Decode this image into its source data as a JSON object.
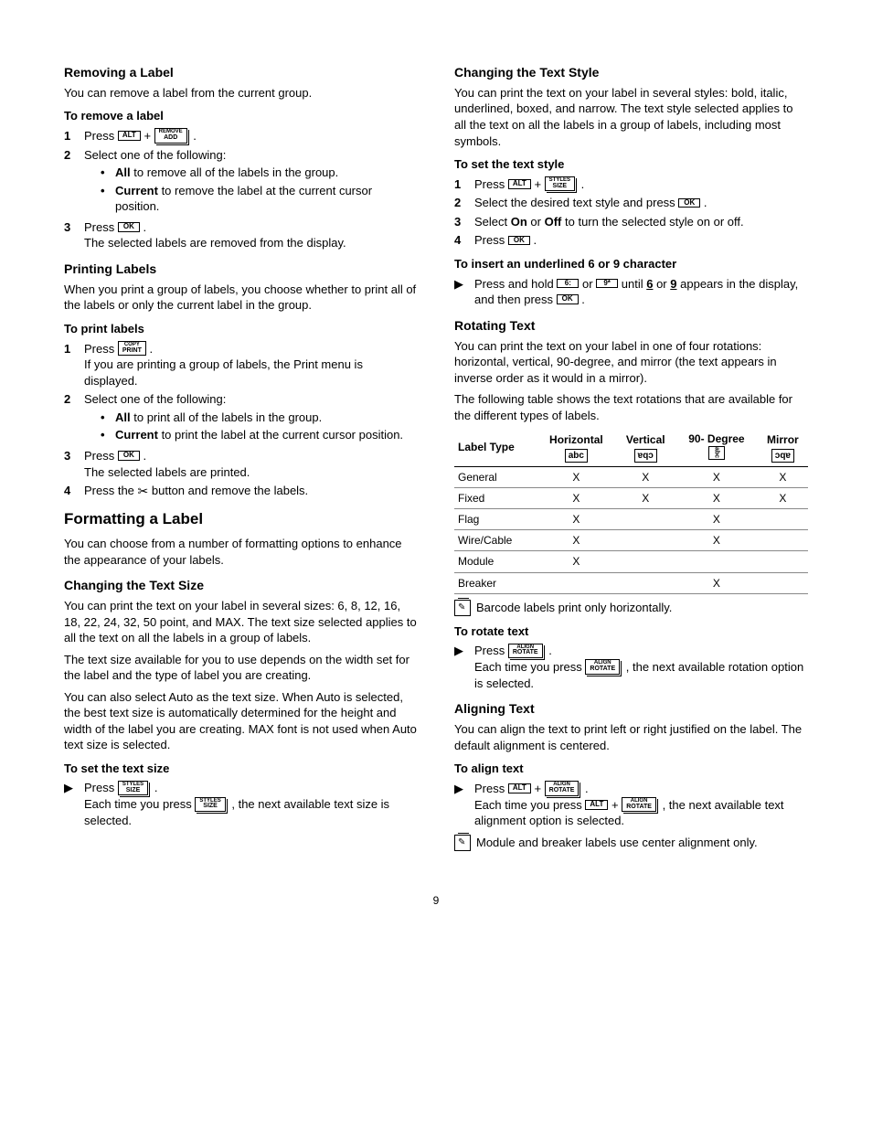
{
  "left": {
    "removing_h": "Removing a Label",
    "removing_p": "You can remove a label from the current group.",
    "remove_sub": "To remove a label",
    "step1_press": "Press ",
    "plus": " + ",
    "period": ".",
    "step2": "Select one of the following:",
    "all_b": "All",
    "all_t": " to remove all of the labels in the group.",
    "cur_b": "Current",
    "cur_t": " to remove the label at the current cursor position.",
    "step3_press": "Press ",
    "step3_after": "The selected labels are removed from the display.",
    "printing_h": "Printing Labels",
    "printing_p": "When you print a group of labels, you choose whether to print all of the labels or only the current label in the group.",
    "print_sub": "To print labels",
    "p_step1_press": "Press ",
    "p_step1_after": "If you are printing a group of labels, the Print menu is displayed.",
    "p_step2": "Select one of the following:",
    "p_all_t": " to print all of the labels in the group.",
    "p_cur_t": " to print the label at the current cursor position.",
    "p_step3_press": "Press ",
    "p_step3_after": "The selected labels are printed.",
    "p_step4_a": "Press the ",
    "p_step4_b": " button and remove the labels.",
    "formatting_h": "Formatting a Label",
    "formatting_p": "You can choose from a number of formatting options to enhance the appearance of your labels.",
    "size_h": "Changing the Text Size",
    "size_p1": "You can print the text on your label in several sizes: 6, 8, 12, 16, 18, 22, 24, 32, 50 point, and MAX. The text size selected applies to all the text on all the labels in a group of labels.",
    "size_p2": "The text size available for you to use depends on the width set for the label and the type of label you are creating.",
    "size_p3": "You can also select Auto as the text size. When Auto is selected, the best text size is automatically determined for the height and width of the label you are creating. MAX font is not used when Auto text size is selected.",
    "size_sub": "To set the text size",
    "size_step_press": "Press ",
    "size_step_after_a": "Each time you press ",
    "size_step_after_b": ", the next available text size is selected."
  },
  "right": {
    "style_h": "Changing the Text Style",
    "style_p": "You can print the text on your label in several styles: bold, italic, underlined, boxed, and narrow. The text style selected applies to all the text on all the labels in a group of labels, including most symbols.",
    "style_sub": "To set the text style",
    "st1_press": "Press ",
    "st2": "Select the desired text style and press ",
    "st3_a": "Select ",
    "st3_on": "On",
    "st3_or": " or ",
    "st3_off": "Off",
    "st3_b": " to turn the selected style on or off.",
    "st4_press": "Press ",
    "under_sub": "To insert an underlined 6 or 9 character",
    "under_a": "Press and hold ",
    "under_or": " or ",
    "under_b": " until ",
    "under_6": "6",
    "under_or2": " or ",
    "under_9": "9",
    "under_c": " appears in the display, and then press ",
    "rot_h": "Rotating Text",
    "rot_p1": "You can print the text on your label in one of four rotations: horizontal, vertical, 90-degree, and mirror (the text appears in inverse order as it would in a mirror).",
    "rot_p2": "The following table shows the text rotations that are available for the different types of labels.",
    "table": {
      "head": [
        "Label Type",
        "Horizontal",
        "Vertical",
        "90- Degree",
        "Mirror"
      ],
      "samples": [
        "abc",
        "ɐqɔ",
        "abc",
        "ɔqɐ"
      ],
      "rows": [
        [
          "General",
          "X",
          "X",
          "X",
          "X"
        ],
        [
          "Fixed",
          "X",
          "X",
          "X",
          "X"
        ],
        [
          "Flag",
          "X",
          "",
          "X",
          ""
        ],
        [
          "Wire/Cable",
          "X",
          "",
          "X",
          ""
        ],
        [
          "Module",
          "X",
          "",
          "",
          ""
        ],
        [
          "Breaker",
          "",
          "",
          "X",
          ""
        ]
      ]
    },
    "note1": "Barcode labels print only horizontally.",
    "rot_sub": "To rotate text",
    "rot_press": "Press ",
    "rot_after_a": "Each time you press ",
    "rot_after_b": ", the next available rotation option is selected.",
    "align_h": "Aligning Text",
    "align_p": "You can align the text to print left or right justified on the label. The default alignment is centered.",
    "align_sub": "To align text",
    "al_press": "Press ",
    "al_after_a": "Each time you press ",
    "al_after_b": ", the next available text alignment option is selected.",
    "note2": "Module and breaker labels use center alignment only."
  },
  "keys": {
    "alt": "ALT",
    "remove_t": "REMOVE",
    "remove_b": "ADD",
    "ok": "OK",
    "copy_t": "COPY",
    "copy_b": "PRINT",
    "styles_t": "STYLES",
    "styles_b": "SIZE",
    "six": "6:",
    "nine": "9*",
    "align_t": "ALIGN",
    "align_b": "ROTATE"
  },
  "pagenum": "9"
}
